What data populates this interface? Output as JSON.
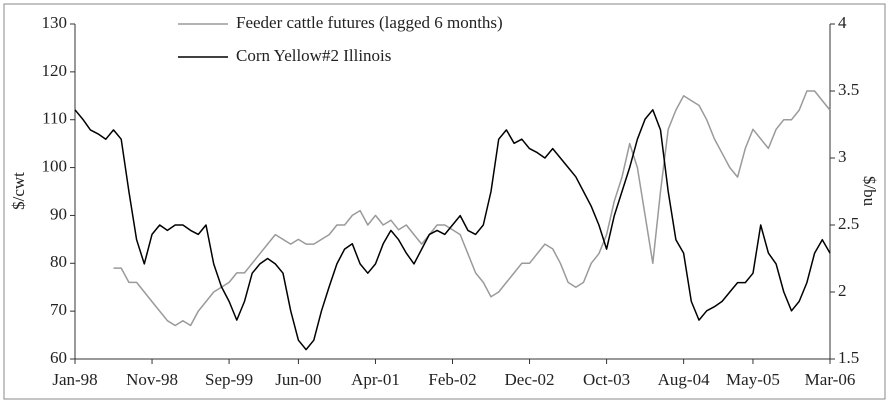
{
  "chart_data": {
    "type": "line",
    "ylabel": "$/cwt",
    "y2label": "$/bu",
    "ylim": [
      60,
      130
    ],
    "yticks": [
      60,
      70,
      80,
      90,
      100,
      110,
      120,
      130
    ],
    "y2lim": [
      1.5,
      4
    ],
    "y2ticks": [
      1.5,
      2,
      2.5,
      3,
      3.5,
      4
    ],
    "categories": [
      "Jan-98",
      null,
      null,
      null,
      null,
      null,
      null,
      null,
      null,
      null,
      "Nov-98",
      null,
      null,
      null,
      null,
      null,
      null,
      null,
      null,
      null,
      "Sep-99",
      null,
      null,
      null,
      null,
      null,
      null,
      null,
      null,
      "Jun-00",
      null,
      null,
      null,
      null,
      null,
      null,
      null,
      null,
      null,
      "Apr-01",
      null,
      null,
      null,
      null,
      null,
      null,
      null,
      null,
      null,
      "Feb-02",
      null,
      null,
      null,
      null,
      null,
      null,
      null,
      null,
      null,
      "Dec-02",
      null,
      null,
      null,
      null,
      null,
      null,
      null,
      null,
      null,
      "Oct-03",
      null,
      null,
      null,
      null,
      null,
      null,
      null,
      null,
      null,
      "Aug-04",
      null,
      null,
      null,
      null,
      null,
      null,
      null,
      null,
      "May-05",
      null,
      null,
      null,
      null,
      null,
      null,
      null,
      null,
      null,
      "Mar-06"
    ],
    "series": [
      {
        "name": "Feeder cattle futures (lagged 6 months)",
        "color": "#9a9a9a",
        "axis": "y",
        "values": [
          null,
          null,
          null,
          null,
          null,
          79,
          79,
          76,
          76,
          74,
          72,
          70,
          68,
          67,
          68,
          67,
          70,
          72,
          74,
          75,
          76,
          78,
          78,
          80,
          82,
          84,
          86,
          85,
          84,
          85,
          84,
          84,
          85,
          86,
          88,
          88,
          90,
          91,
          88,
          90,
          88,
          89,
          87,
          88,
          86,
          84,
          86,
          88,
          88,
          87,
          86,
          82,
          78,
          76,
          73,
          74,
          76,
          78,
          80,
          80,
          82,
          84,
          83,
          80,
          76,
          75,
          76,
          80,
          82,
          86,
          93,
          98,
          105,
          100,
          90,
          80,
          95,
          108,
          112,
          115,
          114,
          113,
          110,
          106,
          103,
          100,
          98,
          104,
          108,
          106,
          104,
          108,
          110,
          110,
          112,
          116,
          116,
          114,
          112
        ]
      },
      {
        "name": "Corn Yellow#2 Illinois",
        "color": "#000000",
        "axis": "y2",
        "values": [
          3.36,
          3.29,
          3.21,
          3.18,
          3.14,
          3.21,
          3.14,
          2.75,
          2.39,
          2.21,
          2.43,
          2.5,
          2.46,
          2.5,
          2.5,
          2.46,
          2.43,
          2.5,
          2.21,
          2.04,
          1.93,
          1.79,
          1.93,
          2.14,
          2.21,
          2.25,
          2.21,
          2.14,
          1.86,
          1.64,
          1.57,
          1.64,
          1.86,
          2.04,
          2.21,
          2.32,
          2.36,
          2.21,
          2.14,
          2.21,
          2.36,
          2.46,
          2.39,
          2.29,
          2.21,
          2.32,
          2.43,
          2.46,
          2.43,
          2.5,
          2.57,
          2.46,
          2.43,
          2.5,
          2.75,
          3.14,
          3.21,
          3.11,
          3.14,
          3.07,
          3.04,
          3,
          3.07,
          3,
          2.93,
          2.86,
          2.75,
          2.64,
          2.5,
          2.32,
          2.57,
          2.75,
          2.93,
          3.14,
          3.29,
          3.36,
          3.21,
          2.75,
          2.39,
          2.29,
          1.93,
          1.79,
          1.86,
          1.89,
          1.93,
          2,
          2.07,
          2.07,
          2.14,
          2.5,
          2.29,
          2.21,
          2,
          1.86,
          1.93,
          2.07,
          2.29,
          2.39,
          2.29
        ]
      }
    ]
  }
}
